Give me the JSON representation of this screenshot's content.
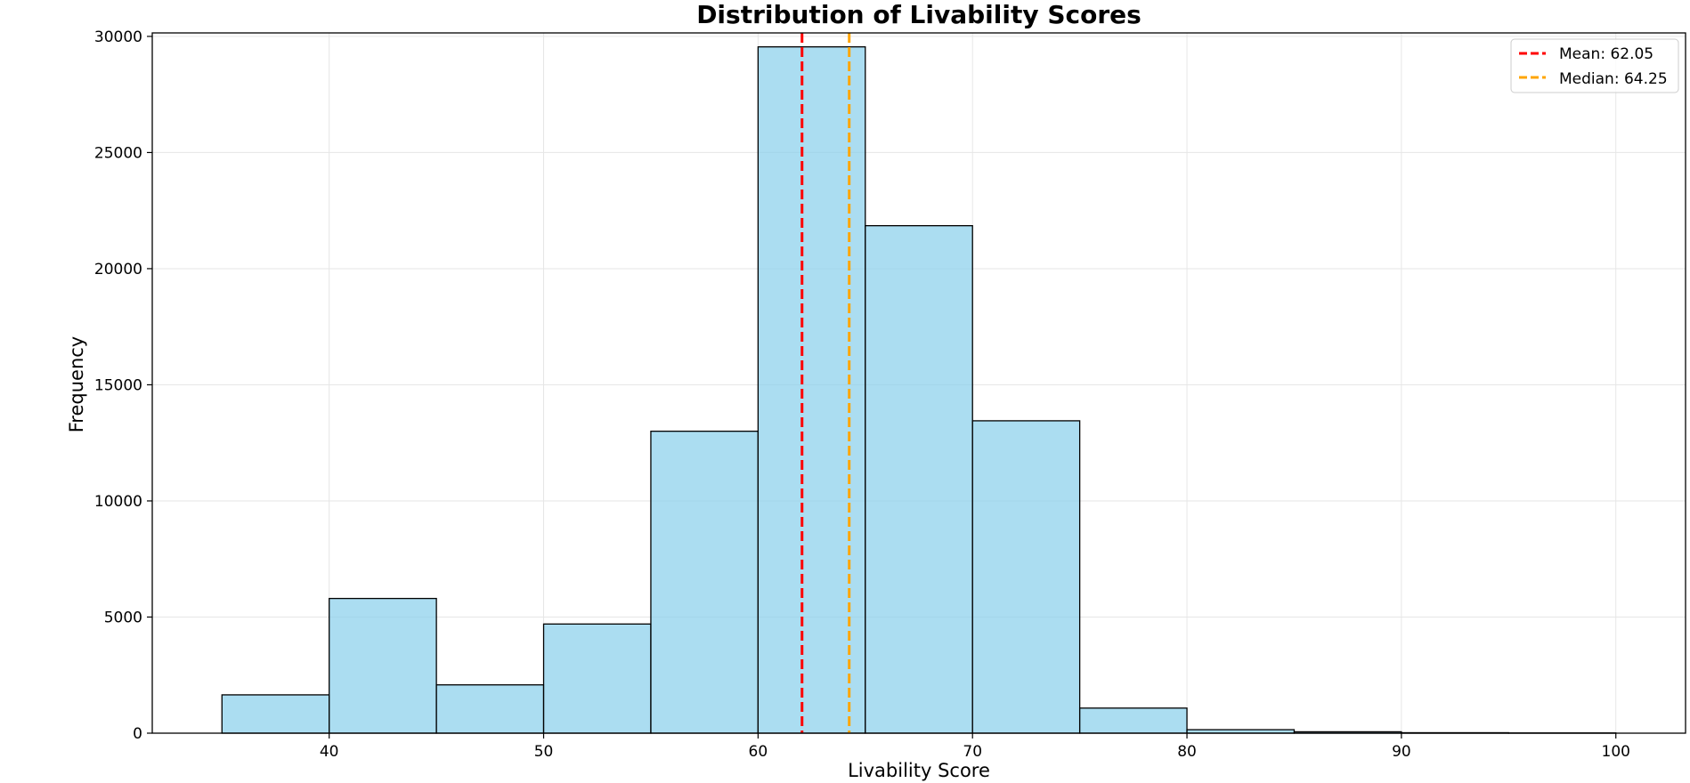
{
  "chart_data": {
    "type": "bar",
    "title": "Distribution of Livability Scores",
    "xlabel": "Livability Score",
    "ylabel": "Frequency",
    "xlim": [
      31.75,
      103.25
    ],
    "ylim": [
      0,
      30150
    ],
    "xticks": [
      40,
      50,
      60,
      70,
      80,
      90,
      100
    ],
    "yticks": [
      0,
      5000,
      10000,
      15000,
      20000,
      25000,
      30000
    ],
    "grid": true,
    "legend_position": "top-right",
    "bin_edges": [
      35,
      40,
      45,
      50,
      55,
      60,
      65,
      70,
      75,
      80,
      85,
      90,
      95,
      100
    ],
    "values": [
      1650,
      5800,
      2080,
      4700,
      13000,
      29550,
      21850,
      13450,
      1080,
      150,
      60,
      20,
      10
    ],
    "bar_color": "#87CEEB",
    "bar_edge_color": "#000000",
    "reference_lines": [
      {
        "label": "Mean: 62.05",
        "value": 62.05,
        "color": "#ff0000",
        "style": "dashed"
      },
      {
        "label": "Median: 64.25",
        "value": 64.25,
        "color": "#ffa500",
        "style": "dashed"
      }
    ]
  }
}
